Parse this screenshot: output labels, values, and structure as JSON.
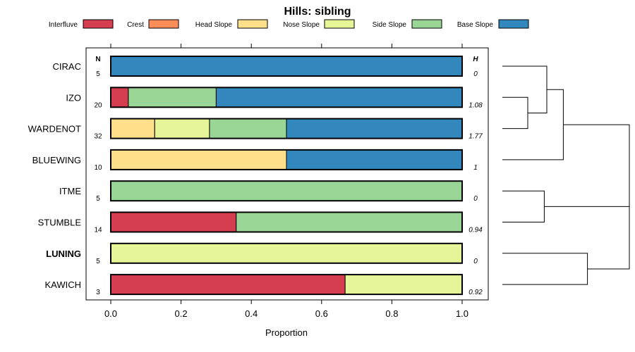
{
  "chart_data": {
    "type": "bar",
    "stacked": true,
    "orientation": "horizontal",
    "title": "Hills: sibling",
    "xlabel": "Proportion",
    "ylabel": "",
    "xlim": [
      0,
      1
    ],
    "xticks": [
      0.0,
      0.2,
      0.4,
      0.6,
      0.8,
      1.0
    ],
    "xtick_labels": [
      "0.0",
      "0.2",
      "0.4",
      "0.6",
      "0.8",
      "1.0"
    ],
    "n_header": "N",
    "h_header": "H",
    "legend": [
      {
        "name": "Interfluve",
        "color": "#d53e4f"
      },
      {
        "name": "Crest",
        "color": "#fc8d59"
      },
      {
        "name": "Head Slope",
        "color": "#fee08b"
      },
      {
        "name": "Nose Slope",
        "color": "#e6f598"
      },
      {
        "name": "Side Slope",
        "color": "#99d594"
      },
      {
        "name": "Base Slope",
        "color": "#3288bd"
      }
    ],
    "rows": [
      {
        "label": "CIRAC",
        "bold": false,
        "n": "5",
        "h": "0",
        "segments": [
          {
            "cat": "Base Slope",
            "value": 1.0
          }
        ]
      },
      {
        "label": "IZO",
        "bold": false,
        "n": "20",
        "h": "1.08",
        "segments": [
          {
            "cat": "Interfluve",
            "value": 0.05
          },
          {
            "cat": "Side Slope",
            "value": 0.25
          },
          {
            "cat": "Base Slope",
            "value": 0.7
          }
        ]
      },
      {
        "label": "WARDENOT",
        "bold": false,
        "n": "32",
        "h": "1.77",
        "segments": [
          {
            "cat": "Head Slope",
            "value": 0.125
          },
          {
            "cat": "Nose Slope",
            "value": 0.156
          },
          {
            "cat": "Side Slope",
            "value": 0.219
          },
          {
            "cat": "Base Slope",
            "value": 0.5
          }
        ]
      },
      {
        "label": "BLUEWING",
        "bold": false,
        "n": "10",
        "h": "1",
        "segments": [
          {
            "cat": "Head Slope",
            "value": 0.5
          },
          {
            "cat": "Base Slope",
            "value": 0.5
          }
        ]
      },
      {
        "label": "ITME",
        "bold": false,
        "n": "5",
        "h": "0",
        "segments": [
          {
            "cat": "Side Slope",
            "value": 1.0
          }
        ]
      },
      {
        "label": "STUMBLE",
        "bold": false,
        "n": "14",
        "h": "0.94",
        "segments": [
          {
            "cat": "Interfluve",
            "value": 0.357
          },
          {
            "cat": "Side Slope",
            "value": 0.643
          }
        ]
      },
      {
        "label": "LUNING",
        "bold": true,
        "n": "5",
        "h": "0",
        "segments": [
          {
            "cat": "Nose Slope",
            "value": 1.0
          }
        ]
      },
      {
        "label": "KAWICH",
        "bold": false,
        "n": "3",
        "h": "0.92",
        "segments": [
          {
            "cat": "Interfluve",
            "value": 0.667
          },
          {
            "cat": "Nose Slope",
            "value": 0.333
          }
        ]
      }
    ],
    "dendrogram": {
      "merges": [
        {
          "left": {
            "leaf": 1
          },
          "right": {
            "leaf": 2
          },
          "height": 0.2
        },
        {
          "left": {
            "leaf": 0
          },
          "right": {
            "node": 0
          },
          "height": 0.35
        },
        {
          "left": {
            "node": 1
          },
          "right": {
            "leaf": 3
          },
          "height": 0.48
        },
        {
          "left": {
            "leaf": 4
          },
          "right": {
            "leaf": 5
          },
          "height": 0.33
        },
        {
          "left": {
            "leaf": 6
          },
          "right": {
            "leaf": 7
          },
          "height": 0.67
        },
        {
          "left": {
            "node": 3
          },
          "right": {
            "node": 4
          },
          "height": 1.0
        },
        {
          "left": {
            "node": 2
          },
          "right": {
            "node": 5
          },
          "height": 1.0
        }
      ]
    }
  }
}
